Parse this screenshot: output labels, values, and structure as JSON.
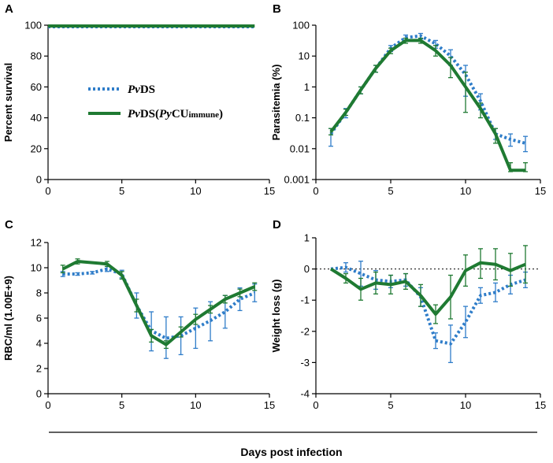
{
  "colors": {
    "pvds": "#2f7dc9",
    "pvds_pycu": "#1f7a32",
    "axis": "#000000"
  },
  "shared_xlabel": "Days post infection",
  "legend": {
    "pvds": {
      "italic": "Pv",
      "rest": "DS"
    },
    "pvds_pycu": {
      "italic1": "Pv",
      "text1": "DS(",
      "italic2": "Py",
      "text2": "CU",
      "small": "immune",
      "text3": ")"
    }
  },
  "chart_data": [
    {
      "panel": "A",
      "type": "line",
      "ylabel": "Percent survival",
      "xlabel": "",
      "yscale": "linear",
      "xlim": [
        0,
        15
      ],
      "ylim": [
        0,
        100
      ],
      "xticks": [
        0,
        5,
        10,
        15
      ],
      "yticks": [
        0,
        20,
        40,
        60,
        80,
        100
      ],
      "xtick_labels": [
        "0",
        "5",
        "10",
        "15"
      ],
      "ytick_labels": [
        "0",
        "20",
        "40",
        "60",
        "80",
        "100"
      ],
      "series": [
        {
          "name": "PvDS",
          "style": "dotted",
          "x": [
            0,
            14
          ],
          "y": [
            99,
            99
          ]
        },
        {
          "name": "PvDS(PyCUimmune)",
          "style": "solid",
          "x": [
            0,
            14
          ],
          "y": [
            99.5,
            99.5
          ]
        }
      ]
    },
    {
      "panel": "B",
      "type": "line",
      "ylabel": "Parasitemia (%)",
      "xlabel": "",
      "yscale": "log",
      "xlim": [
        0,
        15
      ],
      "ylim": [
        0.001,
        100
      ],
      "xticks": [
        0,
        5,
        10,
        15
      ],
      "yticks": [
        0.001,
        0.01,
        0.1,
        1,
        10,
        100
      ],
      "xtick_labels": [
        "0",
        "5",
        "10",
        "15"
      ],
      "ytick_labels": [
        "0.001",
        "0.01",
        "0.1",
        "1",
        "10",
        "100"
      ],
      "series": [
        {
          "name": "PvDS",
          "style": "dotted",
          "x": [
            1,
            2,
            3,
            4,
            5,
            6,
            7,
            8,
            9,
            10,
            11,
            12,
            13,
            14
          ],
          "y": [
            0.03,
            0.15,
            0.8,
            4,
            18,
            40,
            45,
            25,
            10,
            2.5,
            0.35,
            0.03,
            0.02,
            0.015
          ],
          "err_lo": [
            0.012,
            0.1,
            0.6,
            3,
            14,
            32,
            36,
            18,
            5,
            0.5,
            0.18,
            0.02,
            0.012,
            0.008
          ],
          "err_hi": [
            0.045,
            0.2,
            1,
            5,
            22,
            48,
            54,
            32,
            16,
            5,
            0.6,
            0.045,
            0.03,
            0.025
          ]
        },
        {
          "name": "PvDS(PyCUimmune)",
          "style": "solid",
          "x": [
            1,
            2,
            3,
            4,
            5,
            6,
            7,
            8,
            9,
            10,
            11,
            12,
            13,
            14
          ],
          "y": [
            0.035,
            0.15,
            0.8,
            4,
            15,
            32,
            32,
            15,
            5,
            1,
            0.2,
            0.03,
            0.002,
            0.002
          ],
          "err_lo": [
            0.028,
            0.12,
            0.6,
            3,
            12,
            26,
            26,
            10,
            2,
            0.15,
            0.1,
            0.015,
            0.0018,
            0.0018
          ],
          "err_hi": [
            0.045,
            0.19,
            1,
            5,
            18,
            38,
            38,
            22,
            9,
            3,
            0.3,
            0.045,
            0.0035,
            0.0035
          ]
        }
      ]
    },
    {
      "panel": "C",
      "type": "line",
      "ylabel": "RBC/ml (1.00E+9)",
      "xlabel": "",
      "yscale": "linear",
      "xlim": [
        0,
        15
      ],
      "ylim": [
        0,
        12
      ],
      "xticks": [
        0,
        5,
        10,
        15
      ],
      "yticks": [
        0,
        2,
        4,
        6,
        8,
        10,
        12
      ],
      "xtick_labels": [
        "0",
        "5",
        "10",
        "15"
      ],
      "ytick_labels": [
        "0",
        "2",
        "4",
        "6",
        "8",
        "10",
        "12"
      ],
      "series": [
        {
          "name": "PvDS",
          "style": "dotted",
          "x": [
            1,
            2,
            3,
            4,
            5,
            6,
            7,
            8,
            9,
            10,
            11,
            12,
            13,
            14
          ],
          "y": [
            9.5,
            9.5,
            9.6,
            9.9,
            9.5,
            7,
            5,
            4.4,
            4.6,
            5.2,
            5.8,
            6.5,
            7.5,
            8
          ],
          "err_lo": [
            9.3,
            9.4,
            9.5,
            9.7,
            9.2,
            6,
            3.4,
            2.8,
            3.1,
            3.6,
            4.2,
            5.2,
            6.6,
            7.3
          ],
          "err_hi": [
            9.7,
            9.6,
            9.7,
            10.1,
            9.8,
            8,
            6.5,
            6.1,
            6.1,
            6.8,
            7.3,
            7.8,
            8.4,
            8.7
          ]
        },
        {
          "name": "PvDS(PyCUimmune)",
          "style": "solid",
          "x": [
            1,
            2,
            4,
            5,
            6,
            7,
            8,
            9,
            10,
            11,
            12,
            13,
            14
          ],
          "y": [
            9.9,
            10.5,
            10.3,
            9.4,
            7,
            4.6,
            3.9,
            4.9,
            5.9,
            6.7,
            7.5,
            8,
            8.5
          ],
          "err_lo": [
            9.6,
            10.3,
            10.1,
            9.1,
            6.5,
            4.1,
            3.6,
            4.5,
            5.5,
            6.4,
            7.2,
            7.7,
            8.2
          ],
          "err_hi": [
            10.2,
            10.7,
            10.5,
            9.7,
            7.5,
            5.1,
            4.2,
            5.3,
            6.3,
            7,
            7.8,
            8.3,
            8.8
          ]
        }
      ]
    },
    {
      "panel": "D",
      "type": "line",
      "ylabel": "Weight loss (g)",
      "xlabel": "",
      "yscale": "linear",
      "xlim": [
        0,
        15
      ],
      "ylim": [
        -4,
        1
      ],
      "xticks": [
        0,
        5,
        10,
        15
      ],
      "yticks": [
        -4,
        -3,
        -2,
        -1,
        0,
        1
      ],
      "xtick_labels": [
        "0",
        "5",
        "10",
        "15"
      ],
      "ytick_labels": [
        "-4",
        "-3",
        "-2",
        "-1",
        "0",
        "1"
      ],
      "reference_line": {
        "y": 0,
        "style": "dotted"
      },
      "series": [
        {
          "name": "PvDS",
          "style": "dotted",
          "x": [
            1,
            2,
            3,
            4,
            5,
            6,
            7,
            8,
            9,
            10,
            11,
            12,
            13,
            14
          ],
          "y": [
            0,
            0.05,
            -0.15,
            -0.35,
            -0.4,
            -0.35,
            -0.9,
            -2.3,
            -2.4,
            -1.7,
            -0.85,
            -0.75,
            -0.5,
            -0.35
          ],
          "err_lo": [
            0,
            -0.1,
            -0.55,
            -0.65,
            -0.6,
            -0.55,
            -1.2,
            -2.55,
            -3,
            -2.2,
            -1.1,
            -1.05,
            -0.8,
            -0.6
          ],
          "err_hi": [
            0,
            0.2,
            0.25,
            -0.05,
            -0.2,
            -0.15,
            -0.6,
            -2.05,
            -1.8,
            -1.2,
            -0.6,
            -0.45,
            -0.2,
            -0.1
          ]
        },
        {
          "name": "PvDS(PyCUimmune)",
          "style": "solid",
          "x": [
            1,
            2,
            3,
            4,
            5,
            6,
            7,
            8,
            9,
            10,
            11,
            12,
            13,
            14
          ],
          "y": [
            0,
            -0.3,
            -0.65,
            -0.45,
            -0.5,
            -0.4,
            -0.85,
            -1.45,
            -0.9,
            -0.05,
            0.2,
            0.15,
            -0.05,
            0.15
          ],
          "err_lo": [
            0,
            -0.45,
            -1,
            -0.8,
            -0.8,
            -0.65,
            -1.2,
            -1.75,
            -1.6,
            -0.55,
            -0.3,
            -0.35,
            -0.55,
            -0.45
          ],
          "err_hi": [
            0,
            -0.15,
            -0.3,
            -0.1,
            -0.2,
            -0.15,
            -0.5,
            -1.15,
            -0.2,
            0.45,
            0.65,
            0.65,
            0.5,
            0.75
          ]
        }
      ]
    }
  ]
}
